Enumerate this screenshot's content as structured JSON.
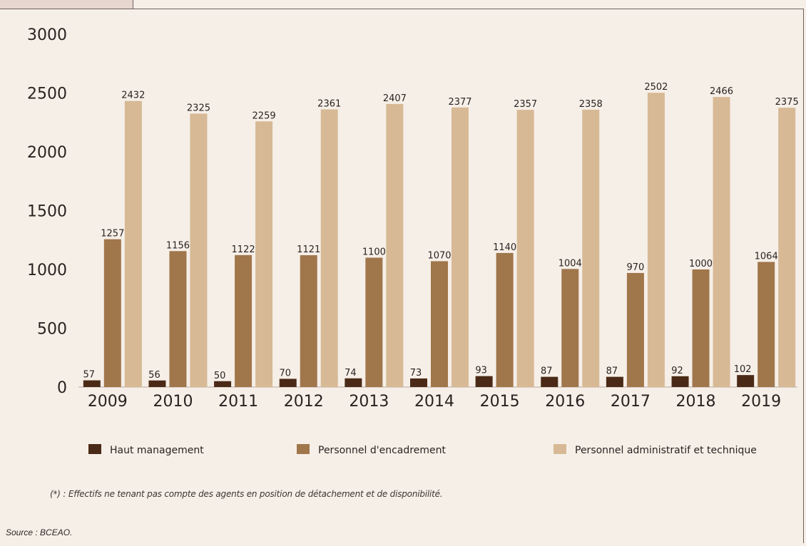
{
  "chart_data": {
    "type": "bar",
    "categories": [
      "2009",
      "2010",
      "2011",
      "2012",
      "2013",
      "2014",
      "2015",
      "2016",
      "2017",
      "2018",
      "2019"
    ],
    "series": [
      {
        "name": "Haut management",
        "color": "#4a2a17",
        "values": [
          57,
          56,
          50,
          70,
          74,
          73,
          93,
          87,
          87,
          92,
          102
        ]
      },
      {
        "name": "Personnel d'encadrement",
        "color": "#a0764b",
        "values": [
          1257,
          1156,
          1122,
          1121,
          1100,
          1070,
          1140,
          1004,
          970,
          1000,
          1064
        ]
      },
      {
        "name": "Personnel administratif et technique",
        "color": "#d7b995",
        "values": [
          2432,
          2325,
          2259,
          2361,
          2407,
          2377,
          2357,
          2358,
          2502,
          2466,
          2375
        ]
      }
    ],
    "yticks": [
      0,
      500,
      1000,
      1500,
      2000,
      2500,
      3000
    ],
    "ylim": [
      0,
      3000
    ],
    "legend": [
      {
        "label": "Haut management",
        "color": "#4a2a17"
      },
      {
        "label": "Personnel d'encadrement",
        "color": "#a0764b"
      },
      {
        "label": "Personnel administratif et technique",
        "color": "#d7b995"
      }
    ],
    "legend_position": "bottom",
    "grid": false
  },
  "notes": {
    "footnote": "(*) : Effectifs ne tenant pas compte des agents en position de détachement et de disponibilité.",
    "source": "Source : BCEAO."
  }
}
